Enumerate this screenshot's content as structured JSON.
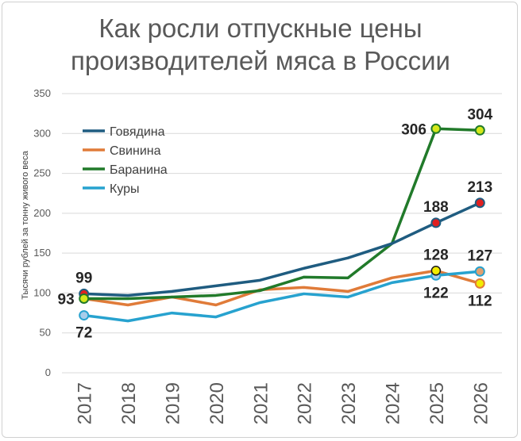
{
  "title_lines": [
    "Как росли отпускные цены",
    "производителей мяса в России"
  ],
  "chart_data": {
    "type": "line",
    "title": "Как росли отпускные цены производителей мяса в России",
    "ylabel": "Тысячи рублей за тонну живого веса",
    "xlabel": "",
    "ylim": [
      0,
      350
    ],
    "yticks": [
      0,
      50,
      100,
      150,
      200,
      250,
      300,
      350
    ],
    "grid": true,
    "legend_position": "top-left",
    "categories": [
      "2017",
      "2018",
      "2019",
      "2020",
      "2021",
      "2022",
      "2023",
      "2024",
      "2025",
      "2026"
    ],
    "series": [
      {
        "name": "Говядина",
        "color": "#1f5c80",
        "values": [
          99,
          97,
          102,
          109,
          116,
          131,
          144,
          162,
          188,
          213
        ],
        "markers": [
          {
            "index": 0,
            "fill": "#e02020"
          },
          {
            "index": 8,
            "fill": "#e02020"
          },
          {
            "index": 9,
            "fill": "#e02020"
          }
        ]
      },
      {
        "name": "Свинина",
        "color": "#e07b39",
        "values": [
          93,
          85,
          95,
          85,
          104,
          107,
          102,
          119,
          128,
          112
        ],
        "markers": [
          {
            "index": 9,
            "fill": "#f2ec00"
          }
        ]
      },
      {
        "name": "Баранина",
        "color": "#217a2a",
        "values": [
          93,
          93,
          95,
          97,
          103,
          120,
          119,
          162,
          306,
          304
        ],
        "markers": [
          {
            "index": 0,
            "fill": "#d4e81a"
          },
          {
            "index": 8,
            "fill": "#d4e81a"
          },
          {
            "index": 9,
            "fill": "#d4e81a"
          }
        ]
      },
      {
        "name": "Куры",
        "color": "#27a2cf",
        "values": [
          72,
          65,
          75,
          70,
          88,
          99,
          95,
          113,
          122,
          127
        ],
        "markers": [
          {
            "index": 0,
            "fill": "#a8cdea"
          },
          {
            "index": 8,
            "fill": "#a8cdea"
          },
          {
            "index": 9,
            "fill": "#e0a070"
          }
        ]
      }
    ],
    "extra_markers": [
      {
        "category_index": 8,
        "value": 128,
        "fill": "#f2ec00"
      }
    ],
    "data_labels": [
      {
        "text": "99",
        "category_index": 0,
        "value": 99,
        "pos": "above"
      },
      {
        "text": "93",
        "category_index": 0,
        "value": 93,
        "pos": "left"
      },
      {
        "text": "72",
        "category_index": 0,
        "value": 72,
        "pos": "below"
      },
      {
        "text": "306",
        "category_index": 8,
        "value": 306,
        "pos": "left"
      },
      {
        "text": "304",
        "category_index": 9,
        "value": 304,
        "pos": "above"
      },
      {
        "text": "188",
        "category_index": 8,
        "value": 188,
        "pos": "above"
      },
      {
        "text": "213",
        "category_index": 9,
        "value": 213,
        "pos": "above"
      },
      {
        "text": "128",
        "category_index": 8,
        "value": 128,
        "pos": "above"
      },
      {
        "text": "127",
        "category_index": 9,
        "value": 127,
        "pos": "above"
      },
      {
        "text": "122",
        "category_index": 8,
        "value": 122,
        "pos": "below"
      },
      {
        "text": "112",
        "category_index": 9,
        "value": 112,
        "pos": "below"
      }
    ]
  }
}
